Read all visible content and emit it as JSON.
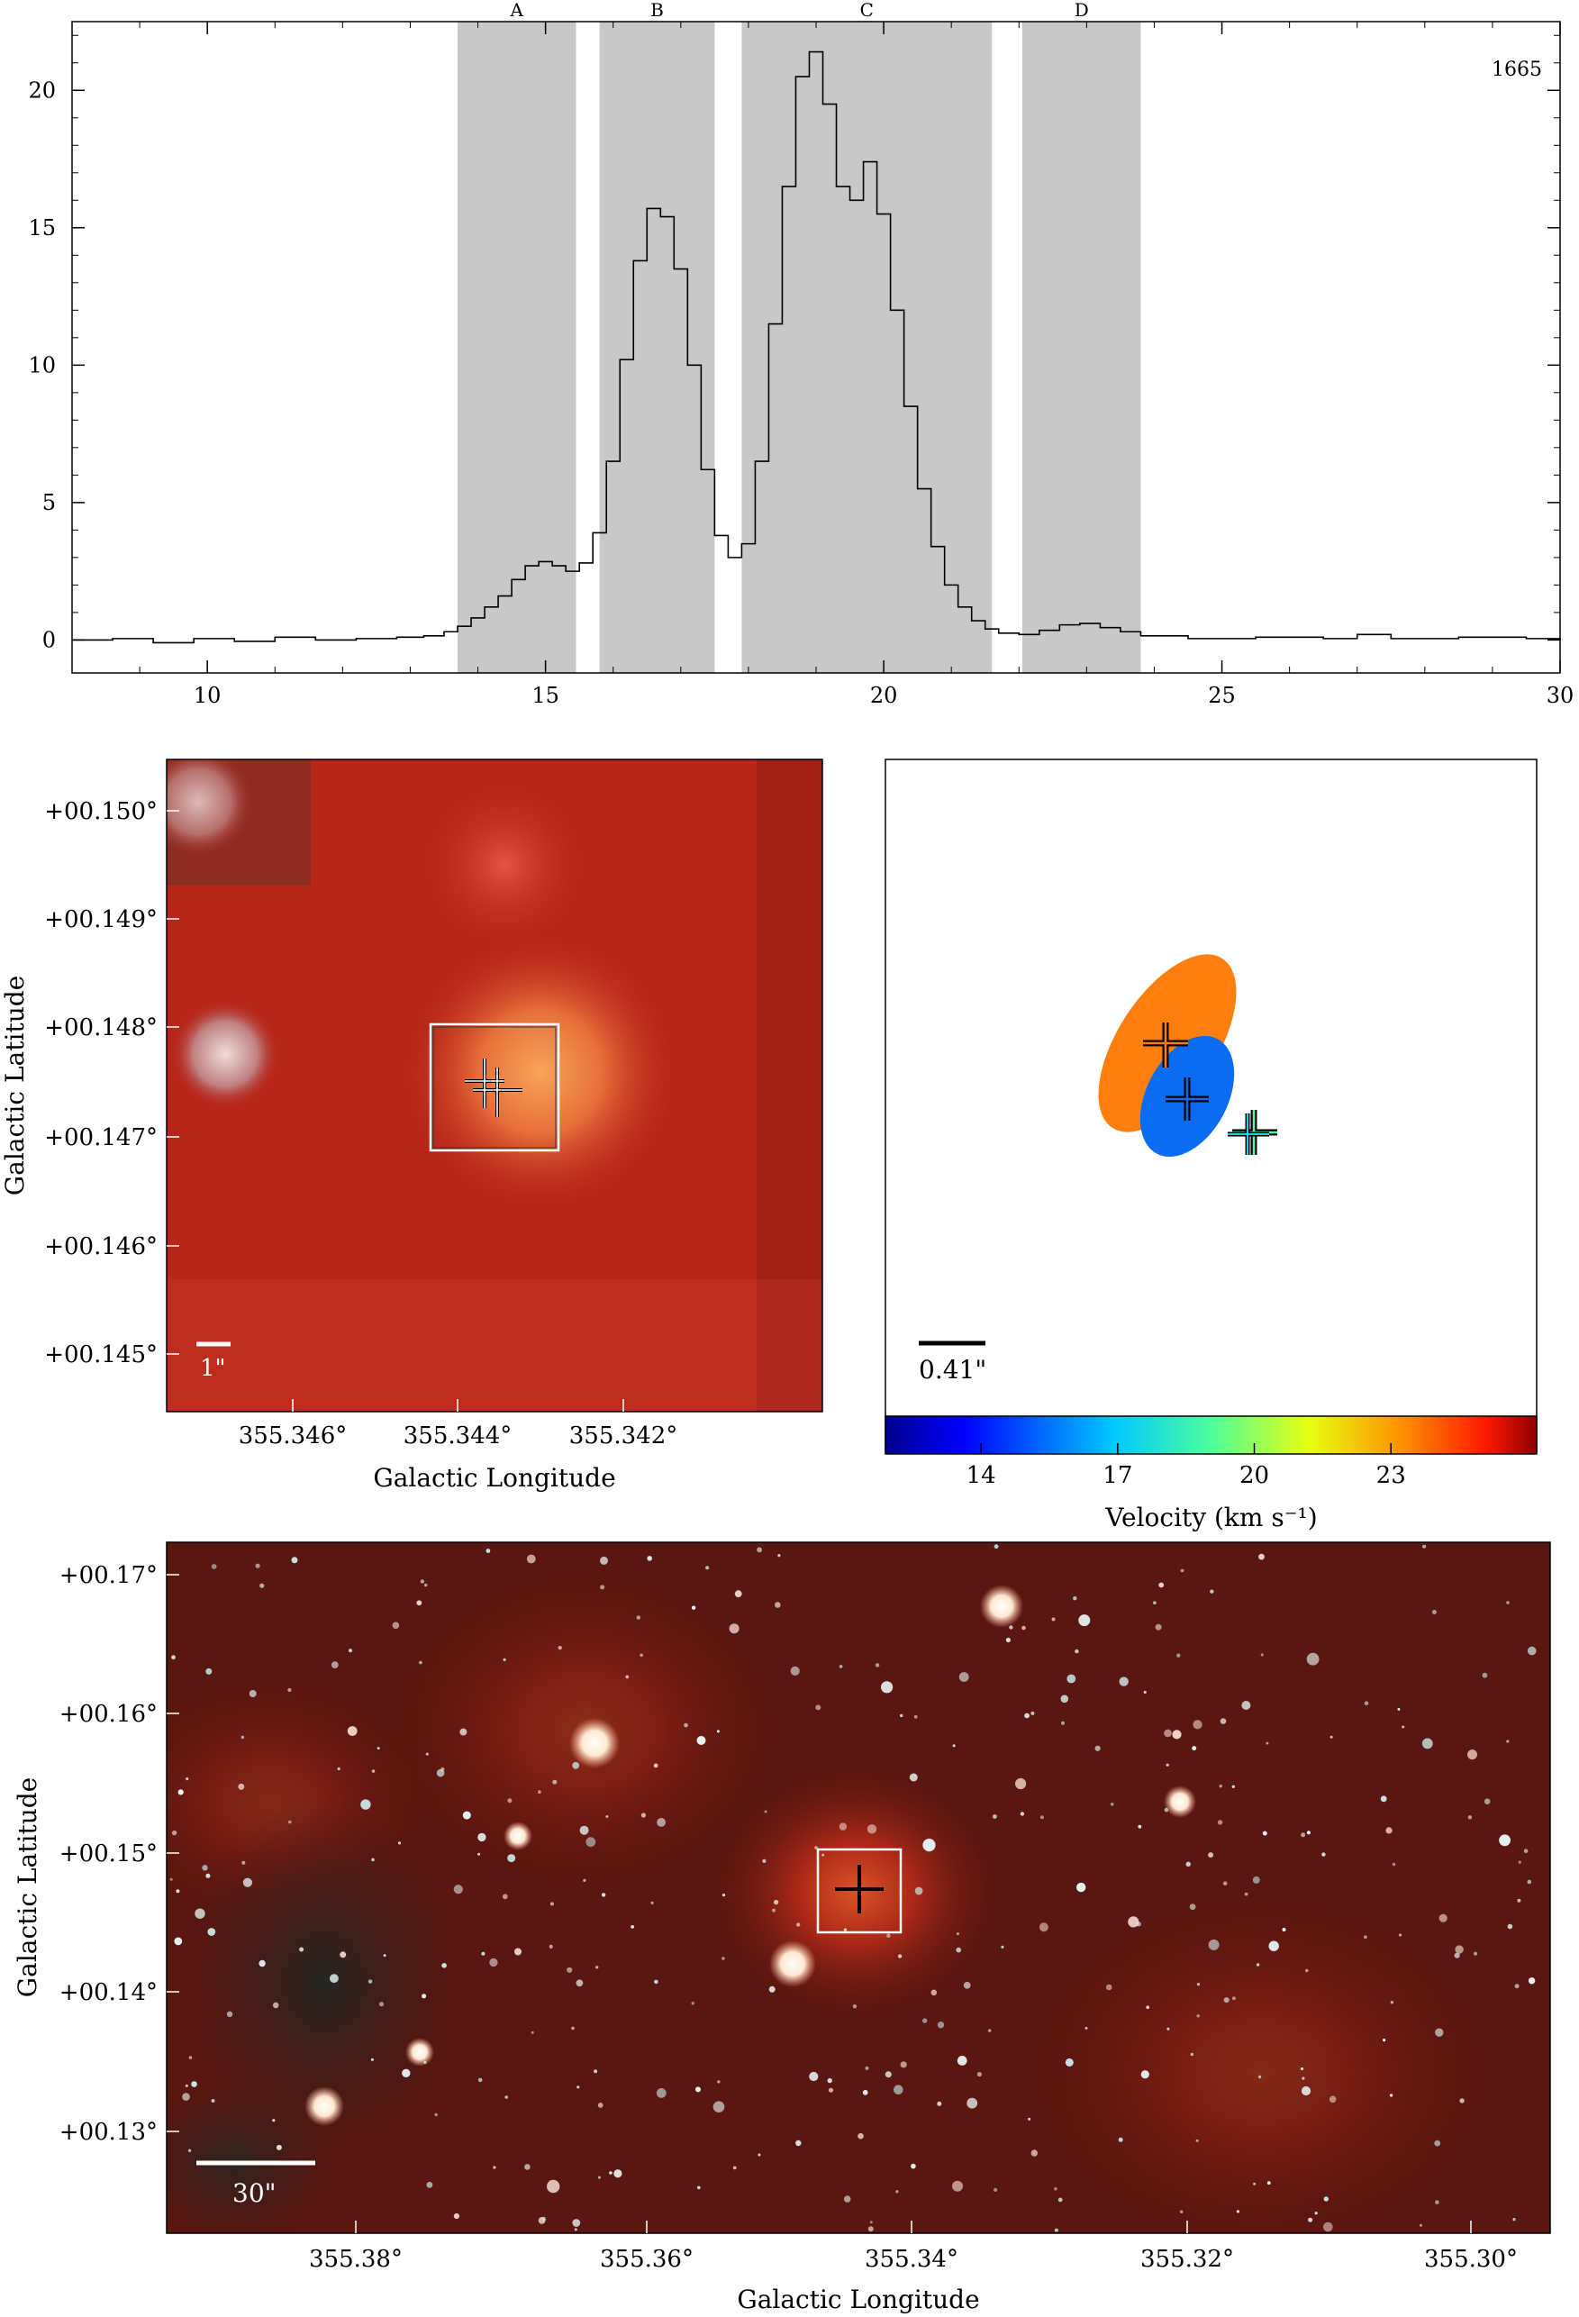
{
  "chart_data": [
    {
      "type": "line",
      "title": "",
      "xlabel": "",
      "ylabel": "",
      "xlim": [
        8,
        30
      ],
      "ylim": [
        -1.2,
        22.5
      ],
      "x_ticks": [
        "10",
        "15",
        "20",
        "25",
        "30"
      ],
      "y_ticks": [
        "0",
        "5",
        "10",
        "15",
        "20"
      ],
      "annotation": "1665",
      "regions": [
        {
          "label": "A",
          "x0": 13.7,
          "x1": 15.45
        },
        {
          "label": "B",
          "x0": 15.8,
          "x1": 17.5
        },
        {
          "label": "C",
          "x0": 17.9,
          "x1": 21.6
        },
        {
          "label": "D",
          "x0": 22.05,
          "x1": 23.8
        }
      ],
      "series": [
        {
          "x": [
            8,
            8.6,
            9.2,
            9.8,
            10.4,
            11,
            11.6,
            12.2,
            12.8,
            13.2,
            13.5,
            13.7,
            13.9,
            14.1,
            14.3,
            14.5,
            14.7,
            14.9,
            15.1,
            15.3,
            15.5,
            15.7,
            15.9,
            16.1,
            16.3,
            16.5,
            16.7,
            16.9,
            17.1,
            17.3,
            17.5,
            17.7,
            17.9,
            18.1,
            18.3,
            18.5,
            18.7,
            18.9,
            19.1,
            19.3,
            19.5,
            19.7,
            19.9,
            20.1,
            20.3,
            20.5,
            20.7,
            20.9,
            21.1,
            21.3,
            21.5,
            21.7,
            22,
            22.3,
            22.6,
            22.9,
            23.2,
            23.5,
            23.8,
            24.5,
            25.5,
            26.5,
            27,
            27.5,
            28.5,
            29.5,
            30
          ],
          "y": [
            0,
            0.05,
            -0.1,
            0.05,
            -0.05,
            0.1,
            0,
            0.05,
            0.1,
            0.15,
            0.3,
            0.5,
            0.8,
            1.2,
            1.6,
            2.2,
            2.7,
            2.85,
            2.7,
            2.5,
            2.8,
            3.9,
            6.5,
            10.2,
            13.8,
            15.7,
            15.4,
            13.5,
            10,
            6.2,
            3.8,
            3,
            3.5,
            6.5,
            11.5,
            16.5,
            20.5,
            21.4,
            19.5,
            16.5,
            16,
            17.4,
            15.5,
            12,
            8.5,
            5.5,
            3.4,
            2,
            1.2,
            0.7,
            0.4,
            0.25,
            0.2,
            0.35,
            0.55,
            0.6,
            0.45,
            0.3,
            0.15,
            0.05,
            0.1,
            0.05,
            0.2,
            0.05,
            0.1,
            0.05,
            0
          ]
        }
      ]
    },
    {
      "type": "image",
      "xlabel": "Galactic Longitude",
      "ylabel": "Galactic Latitude",
      "x_ticks": [
        "355.346°",
        "355.344°",
        "355.342°"
      ],
      "y_ticks": [
        "+00.150°",
        "+00.149°",
        "+00.148°",
        "+00.147°",
        "+00.146°",
        "+00.145°"
      ],
      "scale_bar": "1\"",
      "colors": {
        "background": "#b8261a",
        "core": "#f08a40"
      }
    },
    {
      "type": "scatter",
      "scale_bar": "0.41\"",
      "colorbar_label": "Velocity (km s⁻¹)",
      "colorbar_ticks": [
        "14",
        "17",
        "20",
        "23"
      ],
      "colorbar_range": [
        11.9,
        26.2
      ],
      "ellipses": [
        {
          "color": "#ff7f0e",
          "velocity": 23.5
        },
        {
          "color": "#0a6cf0",
          "velocity": 16.7
        }
      ],
      "points": [
        {
          "velocity": 23.5,
          "color": "#ff7f0e"
        },
        {
          "velocity": 16.7,
          "color": "#0a6cf0"
        },
        {
          "velocity": 19.5,
          "color": "#5cf3a5"
        },
        {
          "velocity": 18.4,
          "color": "#20d0e0"
        }
      ]
    },
    {
      "type": "image",
      "xlabel": "Galactic Longitude",
      "ylabel": "Galactic Latitude",
      "x_ticks": [
        "355.38°",
        "355.36°",
        "355.34°",
        "355.32°",
        "355.30°"
      ],
      "y_ticks": [
        "+00.17°",
        "+00.16°",
        "+00.15°",
        "+00.14°",
        "+00.13°"
      ],
      "scale_bar": "30\"",
      "colors": {
        "background": "#5a1610",
        "nebula": "#b02a18"
      }
    }
  ]
}
